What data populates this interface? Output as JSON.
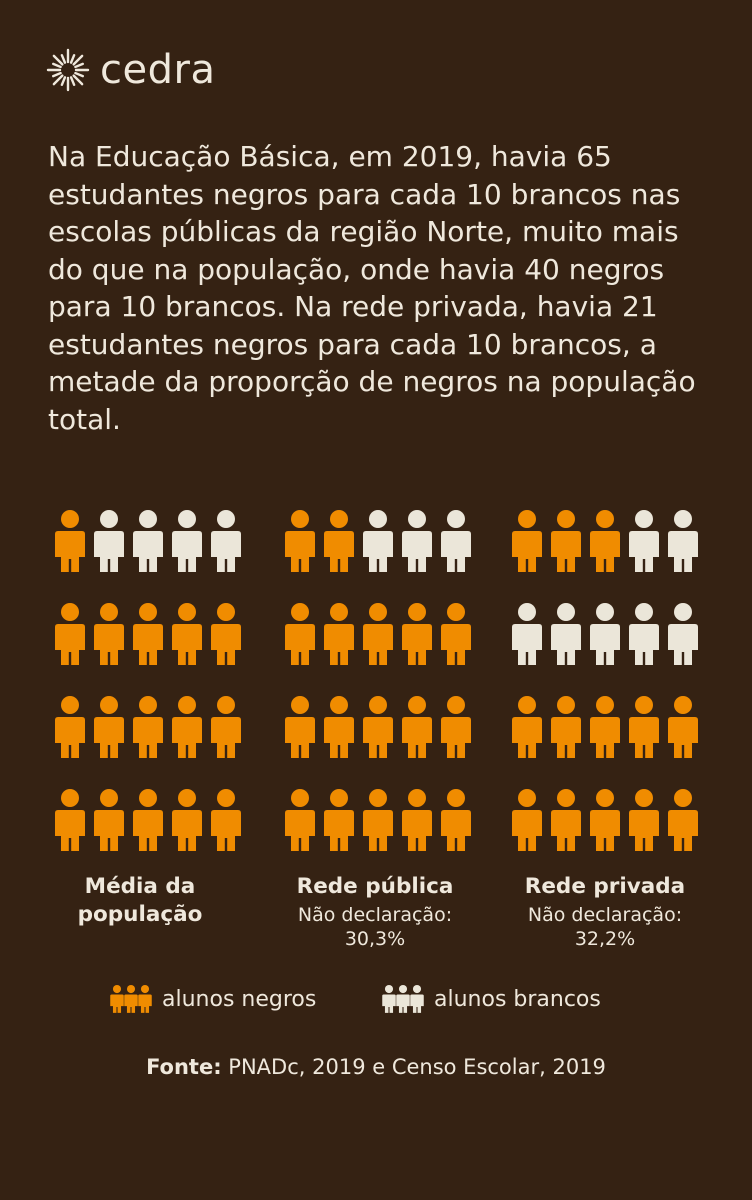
{
  "brand": {
    "name": "cedra",
    "logo_icon": "sun-icon"
  },
  "intro_text": "Na Educação Básica, em 2019, havia 65 estudantes negros para cada 10 brancos nas escolas públicas da região Norte, muito mais do que na população, onde havia 40 negros para 10 brancos. Na rede privada, havia 21 estudantes negros para cada 10 brancos, a metade da proporção de negros na população total.",
  "colors": {
    "background": "#352213",
    "negros": "#f08c00",
    "brancos": "#ebe6d9",
    "text": "#efe8dc"
  },
  "chart_data": {
    "type": "pictogram",
    "unit": "pessoa",
    "rows": 4,
    "columns": 5,
    "panels": [
      {
        "title_lines": [
          "Média da",
          "população"
        ],
        "note_lines": [],
        "negros": 16,
        "brancos": 4
      },
      {
        "title_lines": [
          "Rede pública"
        ],
        "note_lines": [
          "Não declaração:",
          "30,3%"
        ],
        "negros": 17,
        "brancos": 3
      },
      {
        "title_lines": [
          "Rede privada"
        ],
        "note_lines": [
          "Não declaração:",
          "32,2%"
        ],
        "negros": 13,
        "brancos": 7
      }
    ],
    "legend": [
      {
        "name": "alunos negros",
        "color": "#f08c00"
      },
      {
        "name": "alunos brancos",
        "color": "#ebe6d9"
      }
    ]
  },
  "source": {
    "label": "Fonte:",
    "text": " PNADc, 2019 e Censo Escolar, 2019"
  }
}
